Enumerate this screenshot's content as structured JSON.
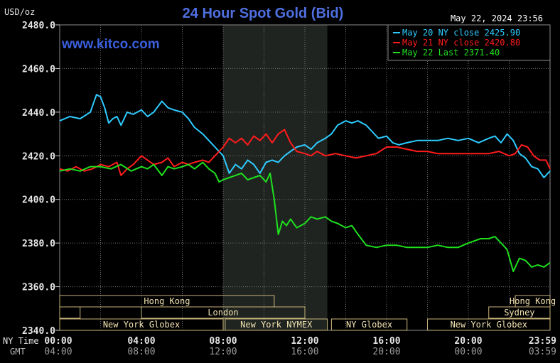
{
  "header": {
    "units": "USD/oz",
    "title": "24 Hour Spot Gold (Bid)",
    "timestamp": "May 22, 2024 23:56",
    "watermark": "www.kitco.com"
  },
  "colors": {
    "background": "#000000",
    "grid": "#707070",
    "highlight": "#202420",
    "title": "#4f6fe0",
    "watermark": "#3a5fdd",
    "text": "#ffffff",
    "axis_text": "#e6e6e6",
    "session_text": "#f0e2b0",
    "session_box": "#c8b47a",
    "series_may20": "#2ecbff",
    "series_may21": "#ff1c1c",
    "series_may22": "#1ee01e"
  },
  "sessions": [
    {
      "name": "Hong Kong",
      "start": 0,
      "end": 10.5,
      "row": 0,
      "show_label": true
    },
    {
      "name": "Hong Kong",
      "start": 22.3,
      "end": 24,
      "row": 0,
      "show_label": true
    },
    {
      "name": "",
      "start": 0,
      "end": 1,
      "row": 1,
      "show_label": false
    },
    {
      "name": "London",
      "start": 4,
      "end": 12,
      "row": 1,
      "show_label": true
    },
    {
      "name": "Sydney",
      "start": 21,
      "end": 24,
      "row": 1,
      "show_label": true
    },
    {
      "name": "New York Globex",
      "start": 0,
      "end": 8,
      "row": 2,
      "show_label": true
    },
    {
      "name": "New York NYMEX",
      "start": 8.1,
      "end": 13.1,
      "row": 2,
      "show_label": true
    },
    {
      "name": "NY Globex",
      "start": 13.3,
      "end": 17,
      "row": 2,
      "show_label": true
    },
    {
      "name": "New York Globex",
      "start": 18,
      "end": 24,
      "row": 2,
      "show_label": true
    }
  ],
  "time_axis": {
    "row1_label": "NY Time",
    "row2_label": "GMT",
    "ny_labels": [
      "00:00",
      "04:00",
      "08:00",
      "12:00",
      "16:00",
      "20:00",
      "23:59"
    ],
    "gmt_labels": [
      "04:00",
      "08:00",
      "12:00",
      "16:00",
      "20:00",
      "00:00",
      "03:59"
    ]
  },
  "chart_data": {
    "type": "line",
    "title": "24 Hour Spot Gold (Bid)",
    "ylabel": "USD/oz",
    "xlabel": "",
    "ylim": [
      2340,
      2480
    ],
    "xlim": [
      0,
      24
    ],
    "y_ticks": [
      "2340.0",
      "2360.0",
      "2380.0",
      "2400.0",
      "2420.0",
      "2440.0",
      "2460.0",
      "2480.0"
    ],
    "grid": true,
    "highlight_x": [
      8,
      13.1
    ],
    "legend_position": "top-right",
    "series": [
      {
        "name": "May 20 NY close 2425.90",
        "color": "#2ecbff",
        "x": [
          0,
          0.5,
          1,
          1.5,
          1.8,
          2,
          2.2,
          2.4,
          2.6,
          2.8,
          3,
          3.3,
          3.6,
          4,
          4.3,
          4.6,
          5,
          5.3,
          5.6,
          6,
          6.3,
          6.6,
          7,
          7.3,
          7.6,
          8,
          8.3,
          8.6,
          8.9,
          9.2,
          9.5,
          9.8,
          10.1,
          10.4,
          10.7,
          11,
          11.3,
          11.6,
          12,
          12.3,
          12.6,
          13,
          13.3,
          13.6,
          14,
          14.3,
          14.6,
          15,
          15.3,
          15.6,
          16,
          16.3,
          16.6,
          17,
          17.5,
          18,
          18.5,
          19,
          19.5,
          20,
          20.5,
          21,
          21.3,
          21.6,
          21.9,
          22.2,
          22.5,
          22.8,
          23.1,
          23.4,
          23.7,
          24
        ],
        "y": [
          2436,
          2438,
          2437,
          2440,
          2448,
          2447,
          2442,
          2435,
          2437,
          2438,
          2434,
          2440,
          2439,
          2441,
          2438,
          2440,
          2445,
          2442,
          2441,
          2440,
          2437,
          2433,
          2430,
          2427,
          2424,
          2420,
          2412,
          2416,
          2414,
          2418,
          2416,
          2412,
          2417,
          2418,
          2417,
          2420,
          2422,
          2424,
          2425,
          2423,
          2426,
          2428,
          2430,
          2434,
          2436,
          2435,
          2436,
          2434,
          2431,
          2428,
          2429,
          2426,
          2425,
          2426,
          2427,
          2427,
          2427,
          2428,
          2427,
          2428,
          2426,
          2428,
          2429,
          2426,
          2430,
          2427,
          2421,
          2419,
          2415,
          2414,
          2410,
          2413
        ]
      },
      {
        "name": "May 21 NY close 2420.80",
        "color": "#ff1c1c",
        "x": [
          0,
          0.4,
          0.8,
          1.2,
          1.6,
          2,
          2.4,
          2.8,
          3,
          3.3,
          3.6,
          4,
          4.3,
          4.6,
          5,
          5.3,
          5.6,
          6,
          6.3,
          6.6,
          7,
          7.3,
          7.6,
          8,
          8.3,
          8.6,
          8.9,
          9.2,
          9.5,
          9.8,
          10.1,
          10.4,
          10.7,
          11,
          11.3,
          11.6,
          12,
          12.3,
          12.6,
          13,
          13.5,
          14,
          14.5,
          15,
          15.5,
          16,
          16.5,
          17,
          17.5,
          18,
          18.5,
          19,
          19.5,
          20,
          20.5,
          21,
          21.5,
          22,
          22.3,
          22.6,
          22.9,
          23.2,
          23.5,
          23.8,
          24
        ],
        "y": [
          2414,
          2413,
          2415,
          2413,
          2414,
          2416,
          2415,
          2417,
          2411,
          2414,
          2416,
          2420,
          2418,
          2416,
          2417,
          2419,
          2415,
          2417,
          2416,
          2417,
          2418,
          2417,
          2420,
          2424,
          2428,
          2426,
          2428,
          2425,
          2429,
          2427,
          2430,
          2426,
          2430,
          2432,
          2426,
          2422,
          2421,
          2420,
          2422,
          2420,
          2421,
          2420,
          2419,
          2420,
          2421,
          2424,
          2424,
          2423,
          2422,
          2422,
          2421,
          2421,
          2421,
          2421,
          2421,
          2421,
          2422,
          2420,
          2421,
          2425,
          2424,
          2420,
          2418,
          2418,
          2414
        ]
      },
      {
        "name": "May 22 Last 2371.40",
        "color": "#1ee01e",
        "x": [
          0,
          0.5,
          1,
          1.5,
          2,
          2.5,
          3,
          3.5,
          4,
          4.3,
          4.6,
          5,
          5.3,
          5.6,
          6,
          6.3,
          6.6,
          7,
          7.3,
          7.6,
          7.8,
          8,
          8.3,
          8.6,
          8.9,
          9.2,
          9.5,
          9.8,
          10.1,
          10.3,
          10.5,
          10.7,
          10.9,
          11.1,
          11.3,
          11.6,
          12,
          12.3,
          12.6,
          13,
          13.3,
          13.6,
          14,
          14.3,
          14.6,
          15,
          15.5,
          16,
          16.5,
          17,
          17.5,
          18,
          18.5,
          19,
          19.5,
          20,
          20.3,
          20.6,
          21,
          21.3,
          21.5,
          21.7,
          21.9,
          22.2,
          22.5,
          22.8,
          23.1,
          23.4,
          23.7,
          24
        ],
        "y": [
          2413,
          2414,
          2413,
          2415,
          2415,
          2414,
          2416,
          2413,
          2415,
          2414,
          2416,
          2411,
          2415,
          2414,
          2415,
          2416,
          2414,
          2417,
          2414,
          2412,
          2408,
          2409,
          2410,
          2411,
          2412,
          2409,
          2410,
          2411,
          2408,
          2412,
          2400,
          2384,
          2390,
          2388,
          2391,
          2387,
          2389,
          2392,
          2391,
          2392,
          2390,
          2389,
          2387,
          2388,
          2384,
          2379,
          2378,
          2379,
          2379,
          2378,
          2378,
          2378,
          2379,
          2378,
          2378,
          2380,
          2381,
          2382,
          2382,
          2383,
          2381,
          2379,
          2377,
          2367,
          2373,
          2372,
          2369,
          2370,
          2369,
          2371
        ]
      }
    ]
  }
}
